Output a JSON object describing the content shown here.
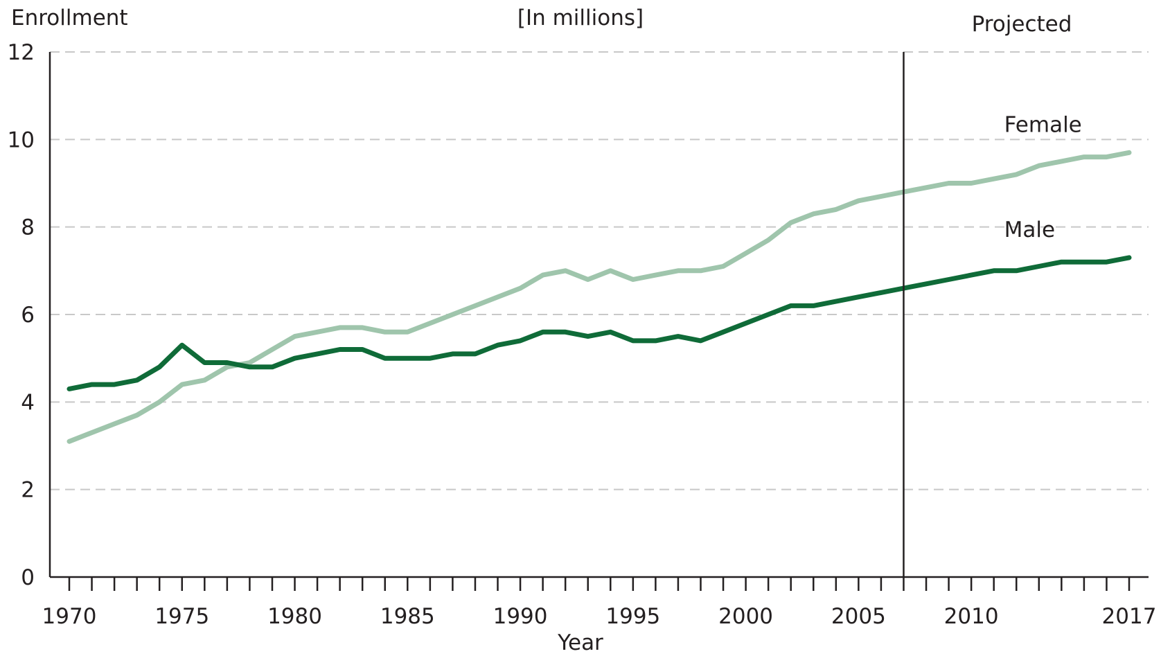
{
  "chart_data": {
    "type": "line",
    "title": "",
    "subtitle": "[In millions]",
    "ylabel": "Enrollment",
    "xlabel": "Year",
    "ylim": [
      0,
      12
    ],
    "xlim": [
      1970,
      2017
    ],
    "yticks": [
      0,
      2,
      4,
      6,
      8,
      10,
      12
    ],
    "xtick_labels": [
      1970,
      1975,
      1980,
      1985,
      1990,
      1995,
      2000,
      2005,
      2010,
      2017
    ],
    "grid": "horizontal dashed",
    "projection": {
      "start": 2007,
      "label": "Projected"
    },
    "x": [
      1970,
      1971,
      1972,
      1973,
      1974,
      1975,
      1976,
      1977,
      1978,
      1979,
      1980,
      1981,
      1982,
      1983,
      1984,
      1985,
      1986,
      1987,
      1988,
      1989,
      1990,
      1991,
      1992,
      1993,
      1994,
      1995,
      1996,
      1997,
      1998,
      1999,
      2000,
      2001,
      2002,
      2003,
      2004,
      2005,
      2006,
      2007,
      2008,
      2009,
      2010,
      2011,
      2012,
      2013,
      2014,
      2015,
      2016,
      2017
    ],
    "series": [
      {
        "name": "Female",
        "color": "#9fc5ac",
        "values": [
          3.1,
          3.3,
          3.5,
          3.7,
          4.0,
          4.4,
          4.5,
          4.8,
          4.9,
          5.2,
          5.5,
          5.6,
          5.7,
          5.7,
          5.6,
          5.6,
          5.8,
          6.0,
          6.2,
          6.4,
          6.6,
          6.9,
          7.0,
          6.8,
          7.0,
          6.8,
          6.9,
          7.0,
          7.0,
          7.1,
          7.4,
          7.7,
          8.1,
          8.3,
          8.4,
          8.6,
          8.7,
          8.8,
          8.9,
          9.0,
          9.0,
          9.1,
          9.2,
          9.4,
          9.5,
          9.6,
          9.6,
          9.7
        ]
      },
      {
        "name": "Male",
        "color": "#0f6b38",
        "values": [
          4.3,
          4.4,
          4.4,
          4.5,
          4.8,
          5.3,
          4.9,
          4.9,
          4.8,
          4.8,
          5.0,
          5.1,
          5.2,
          5.2,
          5.0,
          5.0,
          5.0,
          5.1,
          5.1,
          5.3,
          5.4,
          5.6,
          5.6,
          5.5,
          5.6,
          5.4,
          5.4,
          5.5,
          5.4,
          5.6,
          5.8,
          6.0,
          6.2,
          6.2,
          6.3,
          6.4,
          6.5,
          6.6,
          6.7,
          6.8,
          6.9,
          7.0,
          7.0,
          7.1,
          7.2,
          7.2,
          7.2,
          7.3
        ]
      }
    ]
  }
}
